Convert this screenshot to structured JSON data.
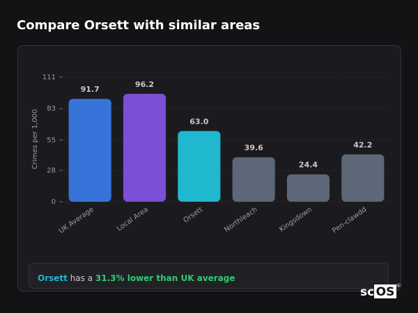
{
  "title": "Compare Orsett with similar areas",
  "chart_data": {
    "type": "bar",
    "categories": [
      "UK Average",
      "Local Area",
      "Orsett",
      "Northleach",
      "Kingsdown",
      "Pen-clawdd"
    ],
    "values": [
      91.7,
      96.2,
      63.0,
      39.6,
      24.4,
      42.2
    ],
    "value_labels": [
      "91.7",
      "96.2",
      "63.0",
      "39.6",
      "24.4",
      "42.2"
    ],
    "colors": [
      "#3674d9",
      "#7b4fd6",
      "#1fb8cf",
      "#5c6778",
      "#5c6778",
      "#5c6778"
    ],
    "y_label": "Crimes per 1,000",
    "ylim": [
      0,
      111
    ],
    "yticks": [
      0,
      28,
      55,
      83,
      111
    ],
    "grid": true
  },
  "summary": {
    "place": "Orsett",
    "text": " has a ",
    "highlight": "31.3% lower than UK average"
  },
  "logo": {
    "prefix": "sc",
    "box": "OS",
    "mark": "®"
  }
}
